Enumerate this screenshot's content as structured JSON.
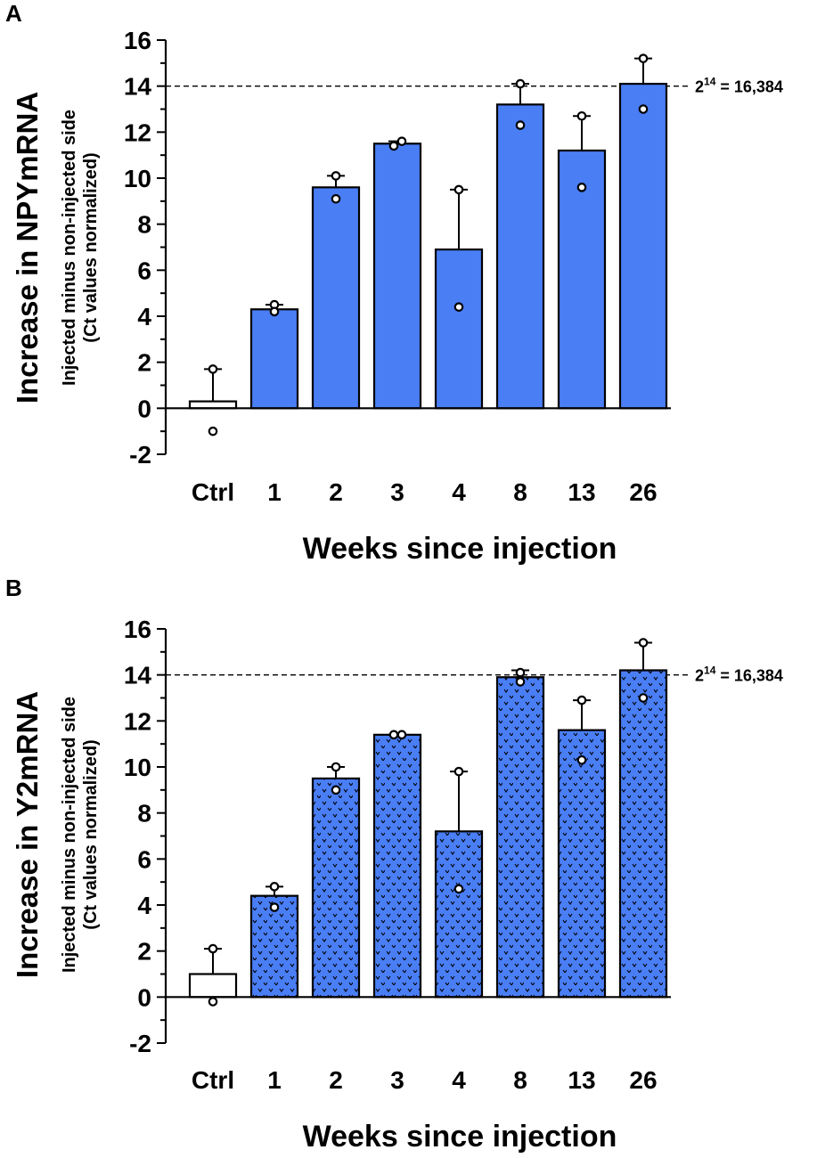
{
  "chart_data": [
    {
      "panel_label": "A",
      "type": "bar",
      "title": "",
      "ylabel": "Increase in NPYmRNA",
      "ylabel_sub_line1": "Injected minus non-injected side",
      "ylabel_sub_line2": "(Ct values normalized)",
      "xlabel": "Weeks since injection",
      "categories": [
        "Ctrl",
        "1",
        "2",
        "3",
        "4",
        "8",
        "13",
        "26"
      ],
      "values": [
        0.3,
        4.3,
        9.6,
        11.5,
        6.9,
        13.2,
        11.2,
        14.1
      ],
      "error_upper": [
        1.7,
        4.5,
        10.1,
        11.6,
        9.5,
        14.1,
        12.7,
        15.2
      ],
      "points": [
        [
          1.7,
          -1.0
        ],
        [
          4.5,
          4.2
        ],
        [
          10.1,
          9.1
        ],
        [
          11.4,
          11.6
        ],
        [
          9.5,
          4.4
        ],
        [
          14.1,
          12.3
        ],
        [
          12.7,
          9.6
        ],
        [
          15.2,
          13.0
        ]
      ],
      "bar_styles": [
        "empty",
        "solid",
        "solid",
        "solid",
        "solid",
        "solid",
        "solid",
        "solid"
      ],
      "yticks": [
        -2,
        0,
        2,
        4,
        6,
        8,
        10,
        12,
        14,
        16
      ],
      "ylim": [
        -2,
        16
      ],
      "reference_line": {
        "y": 14,
        "label_base": "2",
        "label_exp": "14",
        "label_rest": " = 16,384"
      },
      "colors": {
        "bar": "#4a7ef5",
        "stroke": "#000000"
      }
    },
    {
      "panel_label": "B",
      "type": "bar",
      "title": "",
      "ylabel": "Increase in Y2mRNA",
      "ylabel_sub_line1": "Injected minus non-injected side",
      "ylabel_sub_line2": "(Ct values normalized)",
      "xlabel": "Weeks since injection",
      "categories": [
        "Ctrl",
        "1",
        "2",
        "3",
        "4",
        "8",
        "13",
        "26"
      ],
      "values": [
        1.0,
        4.4,
        9.5,
        11.4,
        7.2,
        13.9,
        11.6,
        14.2
      ],
      "error_upper": [
        2.1,
        4.8,
        10.0,
        11.4,
        9.8,
        14.2,
        12.9,
        15.4
      ],
      "points": [
        [
          2.1,
          -0.2
        ],
        [
          4.8,
          3.9
        ],
        [
          10.0,
          9.0
        ],
        [
          11.4,
          11.4
        ],
        [
          9.8,
          4.7
        ],
        [
          14.1,
          13.7
        ],
        [
          12.9,
          10.3
        ],
        [
          15.4,
          13.0
        ]
      ],
      "bar_styles": [
        "empty",
        "dotted",
        "dotted",
        "dotted",
        "dotted",
        "dotted",
        "dotted",
        "dotted"
      ],
      "yticks": [
        -2,
        0,
        2,
        4,
        6,
        8,
        10,
        12,
        14,
        16
      ],
      "ylim": [
        -2,
        16
      ],
      "reference_line": {
        "y": 14,
        "label_base": "2",
        "label_exp": "14",
        "label_rest": " = 16,384"
      },
      "colors": {
        "bar": "#4a7ef5",
        "stroke": "#000000"
      }
    }
  ]
}
